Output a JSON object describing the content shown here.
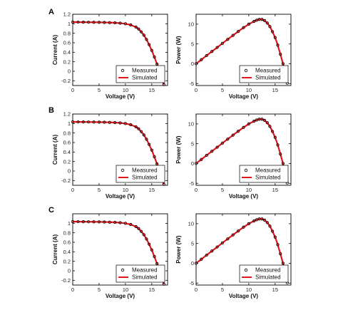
{
  "figure": {
    "panel_labels": [
      "A",
      "B",
      "C"
    ]
  },
  "style": {
    "measured_color": "#000000",
    "simulated_color": "#e4141b",
    "frame_color": "#000000"
  },
  "legend": {
    "measured": "Measured",
    "simulated": "Simulated"
  },
  "chart_data": [
    {
      "panel": "A",
      "type": "scatter",
      "title": "",
      "xlabel": "Voltage (V)",
      "ylabel": "Current (A)",
      "xlim": [
        0,
        18
      ],
      "ylim": [
        -0.3,
        1.2
      ],
      "xticks": [
        0,
        5,
        10,
        15
      ],
      "yticks": [
        -0.2,
        0,
        0.2,
        0.4,
        0.6,
        0.8,
        1,
        1.2
      ],
      "ytick_labels": [
        "-0.2",
        "0",
        "0.2",
        "0.4",
        "0.6",
        "0.8",
        "1",
        "1.2"
      ],
      "legend_position": "bottom-right",
      "grid": false,
      "series": [
        {
          "name": "Measured",
          "marker": "circle",
          "x": [
            0,
            1,
            2,
            3,
            4,
            5,
            6,
            7,
            8,
            9,
            10,
            11,
            12,
            12.5,
            13,
            13.5,
            14,
            14.5,
            15,
            15.5,
            16,
            16.5,
            17,
            17.3
          ],
          "y": [
            1.035,
            1.034,
            1.033,
            1.032,
            1.031,
            1.029,
            1.027,
            1.024,
            1.02,
            1.013,
            1.0,
            0.975,
            0.93,
            0.89,
            0.83,
            0.76,
            0.67,
            0.56,
            0.44,
            0.3,
            0.15,
            0.0,
            -0.18,
            -0.28
          ]
        },
        {
          "name": "Simulated",
          "marker": "line",
          "x": [
            0,
            1,
            2,
            3,
            4,
            5,
            6,
            7,
            8,
            9,
            10,
            11,
            12,
            12.5,
            13,
            13.5,
            14,
            14.5,
            15,
            15.5,
            16,
            16.5,
            17,
            17.3
          ],
          "y": [
            1.035,
            1.034,
            1.033,
            1.032,
            1.031,
            1.029,
            1.027,
            1.024,
            1.02,
            1.013,
            1.0,
            0.975,
            0.93,
            0.89,
            0.83,
            0.76,
            0.67,
            0.56,
            0.44,
            0.3,
            0.15,
            0.0,
            -0.18,
            -0.28
          ]
        }
      ]
    },
    {
      "panel": "A",
      "type": "scatter",
      "title": "",
      "xlabel": "Voltage (V)",
      "ylabel": "Power (W)",
      "xlim": [
        0,
        18
      ],
      "ylim": [
        -5.5,
        12.5
      ],
      "xticks": [
        0,
        5,
        10,
        15
      ],
      "yticks": [
        -5,
        0,
        5,
        10
      ],
      "ytick_labels": [
        "-5",
        "0",
        "5",
        "10"
      ],
      "legend_position": "bottom-right",
      "grid": false,
      "series": [
        {
          "name": "Measured",
          "marker": "circle",
          "x": [
            0,
            1,
            2,
            3,
            4,
            5,
            6,
            7,
            8,
            9,
            10,
            11,
            11.5,
            12,
            12.5,
            13,
            13.5,
            14,
            14.5,
            15,
            15.5,
            16,
            16.5,
            17,
            17.3
          ],
          "y": [
            0,
            1.03,
            2.07,
            3.1,
            4.12,
            5.15,
            6.16,
            7.17,
            8.16,
            9.12,
            10.0,
            10.7,
            11.0,
            11.2,
            11.2,
            10.9,
            10.3,
            9.4,
            8.1,
            6.6,
            4.7,
            2.4,
            0.0,
            -3.1,
            -4.9
          ]
        },
        {
          "name": "Simulated",
          "marker": "line",
          "x": [
            0,
            1,
            2,
            3,
            4,
            5,
            6,
            7,
            8,
            9,
            10,
            11,
            11.5,
            12,
            12.5,
            13,
            13.5,
            14,
            14.5,
            15,
            15.5,
            16,
            16.5,
            17,
            17.3
          ],
          "y": [
            0,
            1.03,
            2.07,
            3.1,
            4.12,
            5.15,
            6.16,
            7.17,
            8.16,
            9.12,
            10.0,
            10.7,
            11.0,
            11.2,
            11.2,
            10.9,
            10.3,
            9.4,
            8.1,
            6.6,
            4.7,
            2.4,
            0.0,
            -3.1,
            -4.9
          ]
        }
      ]
    },
    {
      "panel": "B",
      "type": "scatter",
      "title": "",
      "xlabel": "Voltage (V)",
      "ylabel": "Current (A)",
      "xlim": [
        0,
        18
      ],
      "ylim": [
        -0.3,
        1.2
      ],
      "xticks": [
        0,
        5,
        10,
        15
      ],
      "yticks": [
        -0.2,
        0,
        0.2,
        0.4,
        0.6,
        0.8,
        1,
        1.2
      ],
      "ytick_labels": [
        "-0.2",
        "0",
        "0.2",
        "0.4",
        "0.6",
        "0.8",
        "1",
        "1.2"
      ],
      "legend_position": "bottom-right",
      "grid": false,
      "series": [
        {
          "name": "Measured",
          "marker": "circle",
          "x": [
            0,
            1,
            2,
            3,
            4,
            5,
            6,
            7,
            8,
            9,
            10,
            11,
            12,
            12.5,
            13,
            13.5,
            14,
            14.5,
            15,
            15.5,
            16,
            16.5,
            17,
            17.3
          ],
          "y": [
            1.035,
            1.034,
            1.033,
            1.032,
            1.031,
            1.029,
            1.027,
            1.024,
            1.02,
            1.013,
            1.0,
            0.975,
            0.93,
            0.89,
            0.83,
            0.76,
            0.67,
            0.56,
            0.44,
            0.3,
            0.15,
            0.0,
            -0.18,
            -0.28
          ]
        },
        {
          "name": "Simulated",
          "marker": "line",
          "x": [
            0,
            1,
            2,
            3,
            4,
            5,
            6,
            7,
            8,
            9,
            10,
            11,
            12,
            12.5,
            13,
            13.5,
            14,
            14.5,
            15,
            15.5,
            16,
            16.5,
            17,
            17.3
          ],
          "y": [
            1.035,
            1.034,
            1.033,
            1.032,
            1.031,
            1.029,
            1.027,
            1.024,
            1.02,
            1.013,
            1.0,
            0.975,
            0.93,
            0.89,
            0.83,
            0.76,
            0.67,
            0.56,
            0.44,
            0.3,
            0.15,
            0.0,
            -0.18,
            -0.28
          ]
        }
      ]
    },
    {
      "panel": "B",
      "type": "scatter",
      "title": "",
      "xlabel": "Voltage (V)",
      "ylabel": "Power (W)",
      "xlim": [
        0,
        18
      ],
      "ylim": [
        -5.5,
        12.5
      ],
      "xticks": [
        0,
        5,
        10,
        15
      ],
      "yticks": [
        -5,
        0,
        5,
        10
      ],
      "ytick_labels": [
        "-5",
        "0",
        "5",
        "10"
      ],
      "legend_position": "bottom-right",
      "grid": false,
      "series": [
        {
          "name": "Measured",
          "marker": "circle",
          "x": [
            0,
            1,
            2,
            3,
            4,
            5,
            6,
            7,
            8,
            9,
            10,
            11,
            11.5,
            12,
            12.5,
            13,
            13.5,
            14,
            14.5,
            15,
            15.5,
            16,
            16.5,
            17,
            17.3
          ],
          "y": [
            0,
            1.03,
            2.07,
            3.1,
            4.12,
            5.15,
            6.16,
            7.17,
            8.16,
            9.12,
            10.0,
            10.7,
            11.0,
            11.2,
            11.2,
            10.9,
            10.3,
            9.4,
            8.1,
            6.6,
            4.7,
            2.4,
            0.0,
            -3.1,
            -4.9
          ]
        },
        {
          "name": "Simulated",
          "marker": "line",
          "x": [
            0,
            1,
            2,
            3,
            4,
            5,
            6,
            7,
            8,
            9,
            10,
            11,
            11.5,
            12,
            12.5,
            13,
            13.5,
            14,
            14.5,
            15,
            15.5,
            16,
            16.5,
            17,
            17.3
          ],
          "y": [
            0,
            1.03,
            2.07,
            3.1,
            4.12,
            5.15,
            6.16,
            7.17,
            8.16,
            9.12,
            10.0,
            10.7,
            11.0,
            11.2,
            11.2,
            10.9,
            10.3,
            9.4,
            8.1,
            6.6,
            4.7,
            2.4,
            0.0,
            -3.1,
            -4.9
          ]
        }
      ]
    },
    {
      "panel": "C",
      "type": "scatter",
      "title": "",
      "xlabel": "Voltage (V)",
      "ylabel": "Current (A)",
      "xlim": [
        0,
        18
      ],
      "ylim": [
        -0.3,
        1.2
      ],
      "xticks": [
        0,
        5,
        10,
        15
      ],
      "yticks": [
        -0.2,
        0,
        0.2,
        0.4,
        0.6,
        0.8,
        1
      ],
      "ytick_labels": [
        "-0.2",
        "0",
        "0.2",
        "0.4",
        "0.6",
        "0.8",
        "1"
      ],
      "legend_position": "bottom-right",
      "grid": false,
      "series": [
        {
          "name": "Measured",
          "marker": "circle",
          "x": [
            0,
            1,
            2,
            3,
            4,
            5,
            6,
            7,
            8,
            9,
            10,
            11,
            12,
            12.5,
            13,
            13.5,
            14,
            14.5,
            15,
            15.5,
            16,
            16.5,
            17,
            17.3
          ],
          "y": [
            1.035,
            1.034,
            1.033,
            1.032,
            1.031,
            1.029,
            1.027,
            1.024,
            1.02,
            1.013,
            1.0,
            0.975,
            0.93,
            0.89,
            0.83,
            0.76,
            0.67,
            0.56,
            0.44,
            0.3,
            0.15,
            0.0,
            -0.18,
            -0.28
          ]
        },
        {
          "name": "Simulated",
          "marker": "line",
          "x": [
            0,
            1,
            2,
            3,
            4,
            5,
            6,
            7,
            8,
            9,
            10,
            11,
            12,
            12.5,
            13,
            13.5,
            14,
            14.5,
            15,
            15.5,
            16,
            16.5,
            17,
            17.3
          ],
          "y": [
            1.035,
            1.034,
            1.033,
            1.032,
            1.031,
            1.029,
            1.027,
            1.024,
            1.02,
            1.013,
            1.0,
            0.975,
            0.93,
            0.89,
            0.83,
            0.76,
            0.67,
            0.56,
            0.44,
            0.3,
            0.15,
            0.0,
            -0.18,
            -0.28
          ]
        }
      ]
    },
    {
      "panel": "C",
      "type": "scatter",
      "title": "",
      "xlabel": "Voltage (V)",
      "ylabel": "Power (W)",
      "xlim": [
        0,
        18
      ],
      "ylim": [
        -5.5,
        12.5
      ],
      "xticks": [
        0,
        5,
        10,
        15
      ],
      "yticks": [
        -5,
        0,
        5,
        10
      ],
      "ytick_labels": [
        "-5",
        "0",
        "5",
        "10"
      ],
      "legend_position": "bottom-right",
      "grid": false,
      "series": [
        {
          "name": "Measured",
          "marker": "circle",
          "x": [
            0,
            1,
            2,
            3,
            4,
            5,
            6,
            7,
            8,
            9,
            10,
            11,
            11.5,
            12,
            12.5,
            13,
            13.5,
            14,
            14.5,
            15,
            15.5,
            16,
            16.5,
            17,
            17.3
          ],
          "y": [
            0,
            1.03,
            2.07,
            3.1,
            4.12,
            5.15,
            6.16,
            7.17,
            8.16,
            9.12,
            10.0,
            10.7,
            11.0,
            11.2,
            11.2,
            10.9,
            10.3,
            9.4,
            8.1,
            6.6,
            4.7,
            2.4,
            0.0,
            -3.1,
            -4.9
          ]
        },
        {
          "name": "Simulated",
          "marker": "line",
          "x": [
            0,
            1,
            2,
            3,
            4,
            5,
            6,
            7,
            8,
            9,
            10,
            11,
            11.5,
            12,
            12.5,
            13,
            13.5,
            14,
            14.5,
            15,
            15.5,
            16,
            16.5,
            17,
            17.3
          ],
          "y": [
            0,
            1.03,
            2.07,
            3.1,
            4.12,
            5.15,
            6.16,
            7.17,
            8.16,
            9.12,
            10.0,
            10.7,
            11.0,
            11.2,
            11.2,
            10.9,
            10.3,
            9.4,
            8.1,
            6.6,
            4.7,
            2.4,
            0.0,
            -3.1,
            -4.9
          ]
        }
      ]
    }
  ]
}
